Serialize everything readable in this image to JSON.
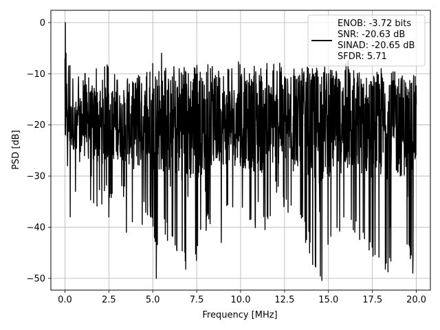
{
  "chart_data": {
    "type": "line",
    "xlabel": "Frequency [MHz]",
    "ylabel": "PSD [dB]",
    "xlim": [
      -0.8,
      20.8
    ],
    "ylim": [
      -52.3,
      2.4
    ],
    "xticks": [
      0.0,
      2.5,
      5.0,
      7.5,
      10.0,
      12.5,
      15.0,
      17.5,
      20.0
    ],
    "xtick_labels": [
      "0.0",
      "2.5",
      "5.0",
      "7.5",
      "10.0",
      "12.5",
      "15.0",
      "17.5",
      "20.0"
    ],
    "yticks": [
      0,
      -10,
      -20,
      -30,
      -40,
      -50
    ],
    "ytick_labels": [
      "0",
      "−10",
      "−20",
      "−30",
      "−40",
      "−50"
    ],
    "grid": true,
    "legend_position": "top-right",
    "legend_entries": [
      "ENOB: -3.72 bits",
      "SNR: -20.63 dB",
      "SINAD: -20.65 dB",
      "SFDR: 5.71"
    ],
    "series": [
      {
        "color": "#000000",
        "x": [
          0.0,
          0.02,
          0.04,
          0.06,
          0.1,
          0.15,
          0.2,
          0.3,
          0.45,
          0.6,
          1.0,
          1.5,
          2.0,
          2.5,
          3.0,
          3.5,
          4.0,
          4.5,
          5.0,
          5.2,
          5.5,
          6.0,
          6.5,
          7.0,
          7.5,
          8.0,
          8.5,
          8.9,
          9.5,
          10.0,
          10.5,
          11.0,
          11.5,
          12.0,
          12.5,
          13.0,
          13.5,
          13.7,
          14.0,
          14.5,
          15.0,
          15.5,
          16.0,
          16.5,
          17.0,
          17.5,
          18.0,
          18.5,
          19.0,
          19.5,
          19.8,
          20.0
        ],
        "y": [
          -7,
          0,
          -22,
          -6,
          -12,
          -28,
          -10,
          -38,
          -11,
          -33,
          -18,
          -30,
          -14,
          -38,
          -16,
          -41,
          -12,
          -35,
          -8,
          -50,
          -6,
          -32,
          -9,
          -34,
          -10,
          -33,
          -11,
          -43,
          -9,
          -28,
          -10,
          -35,
          -8,
          -31,
          -11,
          -29,
          -9,
          -43,
          -12,
          -37,
          -10,
          -34,
          -8,
          -41,
          -12,
          -36,
          -9,
          -40,
          -11,
          -34,
          -49,
          -16
        ],
        "upper_envelope": [
          -6,
          -10,
          -9,
          -8,
          -9,
          -9,
          -8,
          -9,
          -7,
          -9,
          -8,
          -8,
          -9,
          -7,
          -9,
          -8,
          -7,
          -9,
          -8,
          -8,
          -9,
          -7,
          -8,
          -9,
          -10,
          -11
        ],
        "lower_envelope": [
          -23,
          -28,
          -38,
          -35,
          -33,
          -42,
          -38,
          -44,
          -41,
          -47,
          -50,
          -41,
          -38,
          -36,
          -41,
          -43,
          -35,
          -38,
          -40,
          -53,
          -44,
          -41,
          -43,
          -47,
          -49,
          -46
        ],
        "envelope_x": [
          0.0,
          0.8,
          1.6,
          2.4,
          3.2,
          4.0,
          4.8,
          5.2,
          5.6,
          6.4,
          7.2,
          8.0,
          8.8,
          9.6,
          10.4,
          11.2,
          12.0,
          12.8,
          13.6,
          14.4,
          15.2,
          16.0,
          16.8,
          17.6,
          18.4,
          20.0
        ]
      }
    ]
  }
}
